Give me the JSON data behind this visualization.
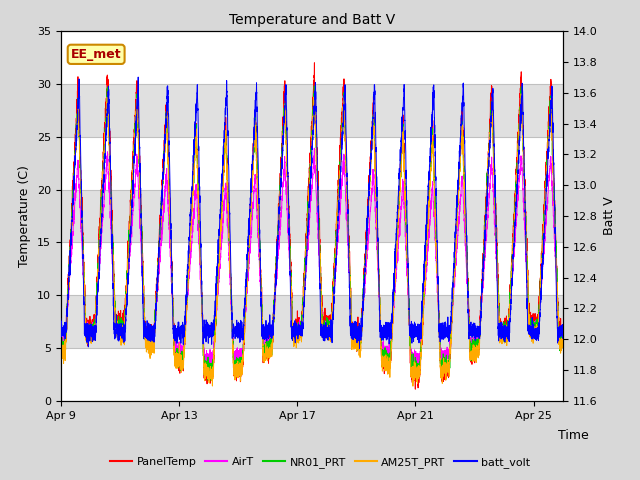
{
  "title": "Temperature and Batt V",
  "xlabel": "Time",
  "ylabel_left": "Temperature (C)",
  "ylabel_right": "Batt V",
  "annotation": "EE_met",
  "ylim_left": [
    0,
    35
  ],
  "ylim_right": [
    11.6,
    14.0
  ],
  "yticks_left": [
    0,
    5,
    10,
    15,
    20,
    25,
    30,
    35
  ],
  "yticks_right": [
    11.6,
    11.8,
    12.0,
    12.2,
    12.4,
    12.6,
    12.8,
    13.0,
    13.2,
    13.4,
    13.6,
    13.8,
    14.0
  ],
  "xtick_labels": [
    "Apr 9",
    "Apr 13",
    "Apr 17",
    "Apr 21",
    "Apr 25"
  ],
  "xtick_positions": [
    0,
    4,
    8,
    12,
    16
  ],
  "series_colors": {
    "PanelTemp": "#ff0000",
    "AirT": "#ff00ff",
    "NR01_PRT": "#00cc00",
    "AM25T_PRT": "#ffaa00",
    "batt_volt": "#0000ff"
  },
  "figure_bg": "#d8d8d8",
  "plot_bg": "#ffffff",
  "band_color": "#e0e0e0",
  "band_ranges": [
    [
      25,
      30
    ],
    [
      15,
      20
    ],
    [
      5,
      10
    ]
  ],
  "grid_line_color": "#c0c0c0",
  "annotation_border_color": "#cc8800",
  "annotation_bg": "#ffffaa",
  "annotation_text_color": "#aa0000",
  "n_days": 17,
  "ppd": 288,
  "title_fontsize": 10,
  "tick_fontsize": 8,
  "label_fontsize": 9,
  "linewidth": 0.7
}
